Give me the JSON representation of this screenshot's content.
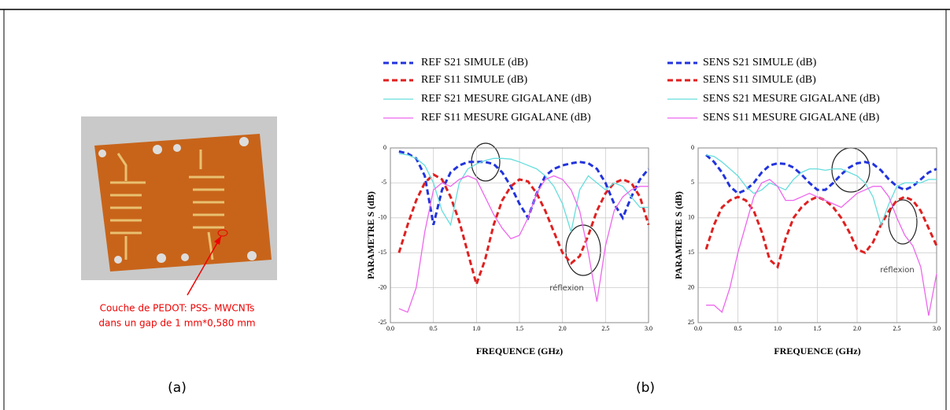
{
  "chart_data": [
    {
      "type": "line",
      "xlabel": "FREQUENCE (GHz)",
      "ylabel": "PARAMETRE S (dB)",
      "annotation": "réflexion",
      "x": [
        0.1,
        0.2,
        0.3,
        0.4,
        0.5,
        0.6,
        0.7,
        0.8,
        0.9,
        1.0,
        1.1,
        1.2,
        1.3,
        1.4,
        1.5,
        1.6,
        1.7,
        1.8,
        1.9,
        2.0,
        2.1,
        2.2,
        2.3,
        2.4,
        2.5,
        2.6,
        2.7,
        2.8,
        2.9,
        3.0
      ],
      "xlim": [
        0,
        3
      ],
      "ylim": [
        -25,
        0
      ],
      "grid": true,
      "xticks": [
        {
          "value": 0,
          "label": "0.0"
        },
        {
          "value": 0.5,
          "label": "0.5"
        },
        {
          "value": 1,
          "label": "1.0"
        },
        {
          "value": 1.5,
          "label": "1.5"
        },
        {
          "value": 2,
          "label": "2.0"
        },
        {
          "value": 2.5,
          "label": "2.5"
        },
        {
          "value": 3,
          "label": "3.0"
        }
      ],
      "yticks": [
        0,
        -5,
        -10,
        -15,
        -20,
        -25
      ],
      "series": [
        {
          "name": "REF S21 SIMULE (dB)",
          "color": "#2233dd",
          "dashed": true,
          "values": [
            -0.5,
            -0.8,
            -1.5,
            -4,
            -11,
            -6,
            -3.5,
            -2.5,
            -2,
            -2,
            -2,
            -2.3,
            -3.5,
            -5.5,
            -8,
            -10,
            -6.5,
            -4,
            -3,
            -2.5,
            -2.2,
            -2,
            -2.2,
            -3,
            -5,
            -8,
            -10,
            -7,
            -4.5,
            -3
          ]
        },
        {
          "name": "REF S11 SIMULE (dB)",
          "color": "#e02020",
          "dashed": true,
          "values": [
            -15,
            -11,
            -7.5,
            -5,
            -3.8,
            -4.5,
            -7,
            -10.5,
            -15,
            -19.5,
            -16,
            -11,
            -7.5,
            -5.5,
            -4.5,
            -4.8,
            -6.5,
            -9,
            -12,
            -15,
            -16.5,
            -15.5,
            -12.5,
            -9,
            -6.5,
            -5,
            -4.5,
            -5,
            -7,
            -11
          ]
        },
        {
          "name": "REF S21 MESURE GIGALANE (dB)",
          "color": "#66dddd",
          "dashed": false,
          "values": [
            -0.8,
            -1,
            -1.5,
            -2.5,
            -5,
            -9,
            -11,
            -5,
            -3,
            -2.3,
            -1.8,
            -1.5,
            -1.5,
            -1.6,
            -2,
            -2.5,
            -3,
            -4,
            -5.5,
            -8,
            -12,
            -6,
            -4,
            -5,
            -6,
            -5,
            -5.5,
            -7,
            -8.5,
            -8.5
          ]
        },
        {
          "name": "REF S11 MESURE GIGALANE (dB)",
          "color": "#ee66ee",
          "dashed": false,
          "values": [
            -23,
            -23.5,
            -20,
            -12,
            -6,
            -5,
            -5.5,
            -4.5,
            -4,
            -4.5,
            -7,
            -9.5,
            -11.5,
            -13,
            -12.5,
            -10,
            -6.5,
            -4.5,
            -4,
            -4.5,
            -6,
            -9,
            -15,
            -22,
            -14,
            -9,
            -7,
            -6,
            -5.5,
            -5.5
          ]
        }
      ]
    },
    {
      "type": "line",
      "xlabel": "FREQUENCE (GHz)",
      "ylabel": "PARAMETRE S (dB)",
      "annotation": "réflexion",
      "x": [
        0.1,
        0.2,
        0.3,
        0.4,
        0.5,
        0.6,
        0.7,
        0.8,
        0.9,
        1.0,
        1.1,
        1.2,
        1.3,
        1.4,
        1.5,
        1.6,
        1.7,
        1.8,
        1.9,
        2.0,
        2.1,
        2.2,
        2.3,
        2.4,
        2.5,
        2.6,
        2.7,
        2.8,
        2.9,
        3.0
      ],
      "xlim": [
        0,
        3
      ],
      "ylim": [
        -25,
        0
      ],
      "grid": true,
      "xticks": [
        {
          "value": 0,
          "label": "0.0"
        },
        {
          "value": 0.5,
          "label": "0.5"
        },
        {
          "value": 1,
          "label": "1.0"
        },
        {
          "value": 1.5,
          "label": "1.5"
        },
        {
          "value": 2,
          "label": "2.0"
        },
        {
          "value": 2.5,
          "label": "2.5"
        },
        {
          "value": 3,
          "label": "3.0"
        }
      ],
      "yticks": [
        0,
        {
          "value": -5,
          "label": "5"
        },
        {
          "value": -10,
          "label": "10"
        },
        {
          "value": -15,
          "label": "15"
        },
        {
          "value": -20,
          "label": "20"
        },
        {
          "value": -25,
          "label": "25"
        }
      ],
      "series": [
        {
          "name": "SENS S21 SIMULE (dB)",
          "color": "#2233dd",
          "dashed": true,
          "values": [
            -1,
            -2,
            -3.5,
            -5.5,
            -6.5,
            -6,
            -5,
            -3.5,
            -2.5,
            -2.2,
            -2.3,
            -2.8,
            -3.8,
            -5,
            -6,
            -6,
            -5,
            -3.8,
            -2.8,
            -2.2,
            -2,
            -2.3,
            -3.2,
            -4.5,
            -5.5,
            -6,
            -5.5,
            -4.5,
            -3.5,
            -3
          ]
        },
        {
          "name": "SENS S11 SIMULE (dB)",
          "color": "#e02020",
          "dashed": true,
          "values": [
            -14.5,
            -11,
            -8.5,
            -7.5,
            -7,
            -7.5,
            -9,
            -12,
            -16,
            -17,
            -13,
            -10,
            -8.5,
            -7.5,
            -7,
            -7.5,
            -8.5,
            -10,
            -12,
            -14.5,
            -15,
            -13.5,
            -11,
            -9,
            -7.5,
            -7,
            -7.5,
            -9,
            -11.5,
            -14
          ]
        },
        {
          "name": "SENS S21 MESURE GIGALANE (dB)",
          "color": "#66dddd",
          "dashed": false,
          "values": [
            -1,
            -1.2,
            -2,
            -3,
            -4,
            -5.5,
            -6.5,
            -6,
            -5,
            -5.5,
            -6,
            -4.5,
            -3.5,
            -3,
            -3,
            -3.2,
            -3,
            -3,
            -3.5,
            -4,
            -5,
            -7,
            -11,
            -8,
            -5.5,
            -5,
            -5,
            -5,
            -4.5,
            -4.5
          ]
        },
        {
          "name": "SENS S11 MESURE GIGALANE (dB)",
          "color": "#ee66ee",
          "dashed": false,
          "values": [
            -22.5,
            -22.5,
            -23.5,
            -20,
            -15,
            -11,
            -7,
            -5,
            -4.5,
            -5.5,
            -7.5,
            -7.5,
            -7,
            -6.5,
            -7,
            -7.5,
            -8,
            -8.5,
            -7.5,
            -6.5,
            -6,
            -5.5,
            -5.5,
            -7,
            -10,
            -12.5,
            -14,
            -17,
            -24,
            -18
          ]
        }
      ]
    }
  ],
  "photo": {
    "caption": [
      "Couche  de PEDOT: PSS- MWCNTs",
      "dans un gap de 1 mm*0,580 mm"
    ]
  },
  "panel_labels": [
    "(a)",
    "(b)"
  ]
}
